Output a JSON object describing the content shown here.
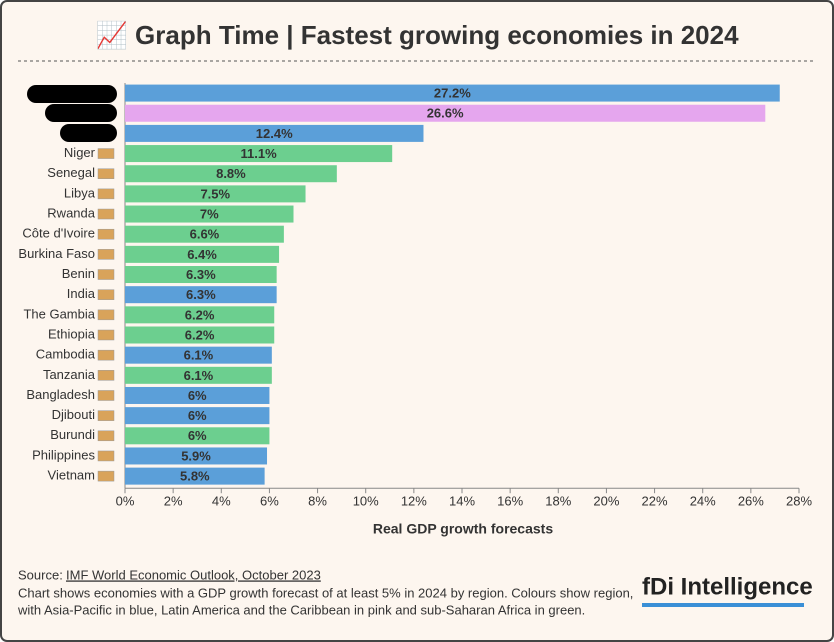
{
  "chart_data": {
    "type": "bar",
    "orientation": "horizontal",
    "title": "📈 Graph Time | Fastest growing economies in 2024",
    "categories": [
      null,
      null,
      null,
      "Niger",
      "Senegal",
      "Libya",
      "Rwanda",
      "Côte d'Ivoire",
      "Burkina Faso",
      "Benin",
      "India",
      "The Gambia",
      "Ethiopia",
      "Cambodia",
      "Tanzania",
      "Bangladesh",
      "Djibouti",
      "Burundi",
      "Philippines",
      "Vietnam"
    ],
    "values": [
      27.2,
      26.6,
      12.4,
      11.1,
      8.8,
      7.5,
      7,
      6.6,
      6.4,
      6.3,
      6.3,
      6.2,
      6.2,
      6.1,
      6.1,
      6,
      6,
      6,
      5.9,
      5.8
    ],
    "value_labels": [
      "27.2%",
      "26.6%",
      "12.4%",
      "11.1%",
      "8.8%",
      "7.5%",
      "7%",
      "6.6%",
      "6.4%",
      "6.3%",
      "6.3%",
      "6.2%",
      "6.2%",
      "6.1%",
      "6.1%",
      "6%",
      "6%",
      "6%",
      "5.9%",
      "5.8%"
    ],
    "colors": [
      "#5b9fd9",
      "#e5a6ee",
      "#5b9fd9",
      "#6ccf8f",
      "#6ccf8f",
      "#6ccf8f",
      "#6ccf8f",
      "#6ccf8f",
      "#6ccf8f",
      "#6ccf8f",
      "#5b9fd9",
      "#6ccf8f",
      "#6ccf8f",
      "#5b9fd9",
      "#6ccf8f",
      "#5b9fd9",
      "#5b9fd9",
      "#6ccf8f",
      "#5b9fd9",
      "#5b9fd9"
    ],
    "value_label_colors": [
      "#ffffff",
      "#000000",
      "#ffffff",
      "#000000",
      "#000000",
      "#000000",
      "#000000",
      "#000000",
      "#000000",
      "#000000",
      "#ffffff",
      "#000000",
      "#000000",
      "#ffffff",
      "#000000",
      "#ffffff",
      "#000000",
      "#000000",
      "#ffffff",
      "#ffffff"
    ],
    "xlim": [
      0,
      28
    ],
    "xticks": [
      {
        "value": 0,
        "label": "0%"
      },
      {
        "value": 2,
        "label": "2%"
      },
      {
        "value": 4,
        "label": "4%"
      },
      {
        "value": 6,
        "label": "6%"
      },
      {
        "value": 8,
        "label": "8%"
      },
      {
        "value": 10,
        "label": "10%"
      },
      {
        "value": 12,
        "label": "12%"
      },
      {
        "value": 14,
        "label": "14%"
      },
      {
        "value": 16,
        "label": "16%"
      },
      {
        "value": 18,
        "label": "18%"
      },
      {
        "value": 20,
        "label": "20%"
      },
      {
        "value": 22,
        "label": "22%"
      },
      {
        "value": 24,
        "label": "24%"
      },
      {
        "value": 26,
        "label": "26%"
      },
      {
        "value": 28,
        "label": "28%"
      }
    ],
    "x_label": "Real GDP growth forecasts",
    "source_prefix": "Source: ",
    "source_link": "IMF World Economic Outlook, October 2023",
    "note": [
      "Chart shows economies with a GDP growth forecast of at least 5% in 2024 by region. Colours show region,",
      "with Asia-Pacific in blue, Latin America and the Caribbean in pink and sub-Saharan Africa in green."
    ],
    "logo": "fDi Intelligence"
  }
}
